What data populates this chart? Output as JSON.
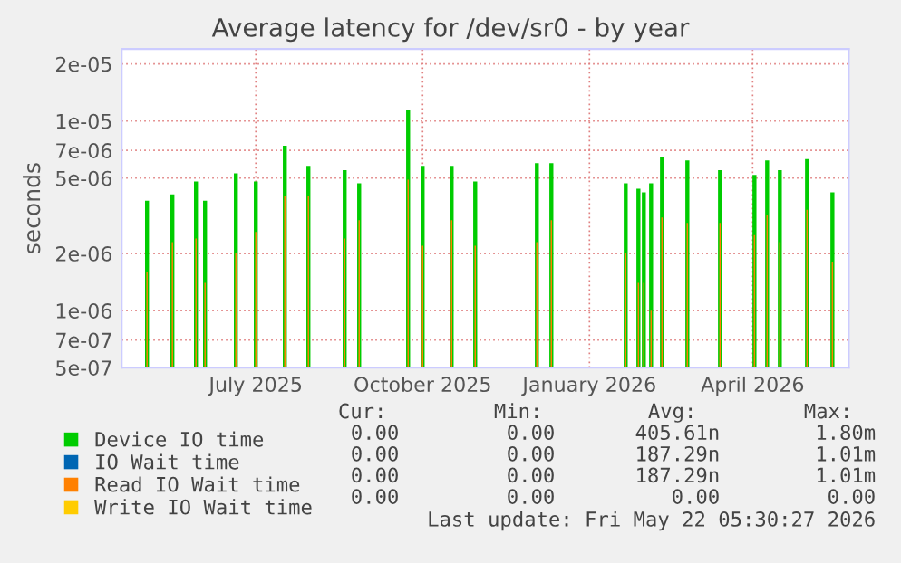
{
  "chart_data": {
    "type": "bar",
    "title": "Average latency for /dev/sr0 - by year",
    "ylabel": "seconds",
    "x": [
      "2025-05-02",
      "2025-05-16",
      "2025-05-29",
      "2025-06-03",
      "2025-06-20",
      "2025-07-01",
      "2025-07-17",
      "2025-07-30",
      "2025-08-19",
      "2025-08-27",
      "2025-09-23",
      "2025-10-01",
      "2025-10-17",
      "2025-10-30",
      "2025-12-03",
      "2025-12-11",
      "2026-01-21",
      "2026-01-28",
      "2026-01-31",
      "2026-02-04",
      "2026-02-10",
      "2026-02-24",
      "2026-03-14",
      "2026-04-02",
      "2026-04-09",
      "2026-04-16",
      "2026-05-01",
      "2026-05-15"
    ],
    "series": [
      {
        "name": "Device IO time",
        "color": "#00cc00",
        "values": [
          3.8e-06,
          4.1e-06,
          4.8e-06,
          3.8e-06,
          5.3e-06,
          4.8e-06,
          7.4e-06,
          5.8e-06,
          5.5e-06,
          4.7e-06,
          1.15e-05,
          5.8e-06,
          5.8e-06,
          4.8e-06,
          6e-06,
          6e-06,
          4.7e-06,
          4.4e-06,
          4.2e-06,
          4.7e-06,
          6.5e-06,
          6.2e-06,
          5.5e-06,
          5.2e-06,
          6.2e-06,
          5.5e-06,
          6.3e-06,
          4.2e-06
        ]
      },
      {
        "name": "IO Wait time",
        "color": "#0066b3",
        "values": [
          null,
          null,
          null,
          null,
          null,
          null,
          null,
          null,
          null,
          null,
          null,
          null,
          null,
          null,
          null,
          null,
          null,
          null,
          null,
          null,
          null,
          null,
          null,
          null,
          null,
          null,
          null,
          null
        ]
      },
      {
        "name": "Read IO Wait time",
        "color": "#ff8000",
        "values": [
          1.6e-06,
          2.3e-06,
          2.4e-06,
          1.4e-06,
          2e-06,
          2.6e-06,
          4e-06,
          4e-06,
          2.4e-06,
          3e-06,
          4.9e-06,
          2.2e-06,
          3e-06,
          2.2e-06,
          2.3e-06,
          3e-06,
          2e-06,
          1.4e-06,
          1.4e-06,
          1e-06,
          3.1e-06,
          2.9e-06,
          2.9e-06,
          2.5e-06,
          3.2e-06,
          2.3e-06,
          3.4e-06,
          1.8e-06
        ]
      },
      {
        "name": "Write IO Wait time",
        "color": "#ffcc00",
        "values": [
          null,
          null,
          null,
          null,
          null,
          null,
          null,
          null,
          null,
          null,
          null,
          null,
          null,
          null,
          null,
          null,
          null,
          null,
          null,
          null,
          null,
          null,
          null,
          null,
          null,
          null,
          null,
          null
        ]
      }
    ],
    "log": "y",
    "ylim": [
      5e-07,
      2.4e-05
    ],
    "yticks": [
      {
        "value": 5e-07,
        "label": "5e-07"
      },
      {
        "value": 7e-07,
        "label": "7e-07"
      },
      {
        "value": 1e-06,
        "label": "1e-06"
      },
      {
        "value": 2e-06,
        "label": "2e-06"
      },
      {
        "value": 5e-06,
        "label": "5e-06"
      },
      {
        "value": 7e-06,
        "label": "7e-06"
      },
      {
        "value": 1e-05,
        "label": "1e-05"
      },
      {
        "value": 2e-05,
        "label": "2e-05"
      }
    ],
    "xlim": [
      "2025-04-18",
      "2026-05-24"
    ],
    "xticks": [
      {
        "value": "2025-07-01",
        "label": "July 2025"
      },
      {
        "value": "2025-10-01",
        "label": "October 2025"
      },
      {
        "value": "2026-01-01",
        "label": "January 2026"
      },
      {
        "value": "2026-04-01",
        "label": "April 2026"
      }
    ],
    "grid": true,
    "legend": "bottom",
    "annotations": [
      "Cur:",
      "Min:",
      "Avg:",
      "Max:",
      "0.00",
      "0.00",
      "405.61n",
      "1.80m",
      "0.00",
      "0.00",
      "187.29n",
      "1.01m",
      "0.00",
      "0.00",
      "187.29n",
      "1.01m",
      "0.00",
      "0.00",
      "0.00",
      "0.00",
      "Last update: Fri May 22 05:30:27 2026"
    ]
  }
}
